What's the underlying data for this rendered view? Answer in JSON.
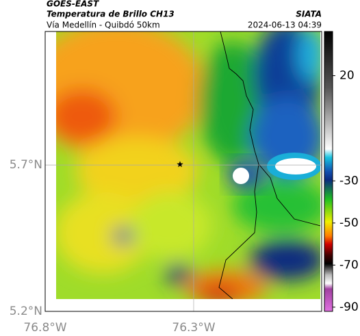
{
  "header": {
    "satellite": "GOES-EAST",
    "title": "Temperatura de Brillo CH13",
    "subtitle": "Vía Medellín - Quibdó 50km",
    "source": "SIATA",
    "timestamp": "2024-06-13 04:39"
  },
  "map": {
    "latlim": [
      5.2,
      6.156
    ],
    "lonlim": [
      -76.8,
      -75.869
    ],
    "lat_ticks": [
      {
        "value": 5.2,
        "label": "5.2°N"
      },
      {
        "value": 5.7,
        "label": "5.7°N"
      }
    ],
    "lon_ticks": [
      {
        "value": -76.8,
        "label": "76.8°W"
      },
      {
        "value": -76.3,
        "label": "76.3°W"
      }
    ],
    "marker": {
      "lon": -76.346,
      "lat": 5.702
    }
  },
  "colorbar": {
    "lim": [
      -92,
      41
    ],
    "ticks": [
      20,
      -30,
      -50,
      -70,
      -90
    ]
  }
}
